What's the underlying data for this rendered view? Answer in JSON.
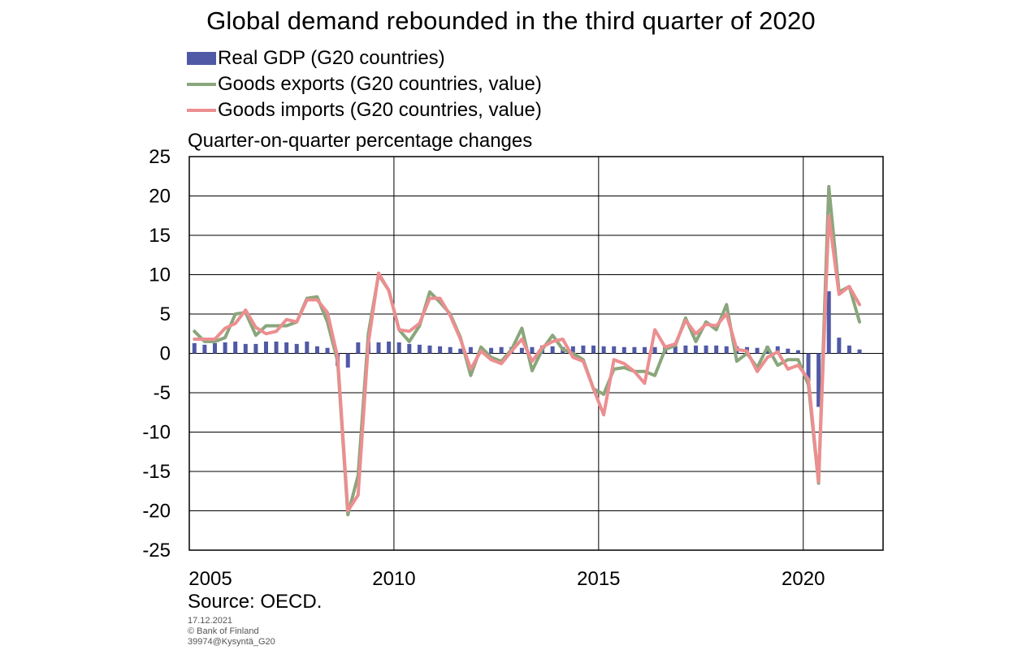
{
  "title": "Global demand rebounded in the third quarter of 2020",
  "legend": [
    {
      "label": "Real GDP (G20 countries)",
      "kind": "bar",
      "color": "#5059a6"
    },
    {
      "label": "Goods exports (G20 countries, value)",
      "kind": "line",
      "color": "#8aa67c"
    },
    {
      "label": "Goods imports (G20 countries, value)",
      "kind": "line",
      "color": "#ec8e90"
    }
  ],
  "y_axis_label": "Quarter-on-quarter percentage changes",
  "source": "Source: OECD.",
  "footer": {
    "date": "17.12.2021",
    "copyright": "© Bank of Finland",
    "code": "39974@Kysyntä_G20"
  },
  "chart_data": {
    "type": "bar+line",
    "title": "Global demand rebounded in the third quarter of 2020",
    "ylabel": "Quarter-on-quarter percentage changes",
    "ylim": [
      -25,
      25
    ],
    "yticks": [
      25,
      20,
      15,
      10,
      5,
      0,
      -5,
      -10,
      -15,
      -20,
      -25
    ],
    "xticks": [
      "2005",
      "2010",
      "2015",
      "2020"
    ],
    "grid": "horizontal lines at every 5, vertical lines at year ticks",
    "x_start": "2005 Q1",
    "x_end": "2021 Q2",
    "periods": [
      "2005 Q1",
      "2005 Q2",
      "2005 Q3",
      "2005 Q4",
      "2006 Q1",
      "2006 Q2",
      "2006 Q3",
      "2006 Q4",
      "2007 Q1",
      "2007 Q2",
      "2007 Q3",
      "2007 Q4",
      "2008 Q1",
      "2008 Q2",
      "2008 Q3",
      "2008 Q4",
      "2009 Q1",
      "2009 Q2",
      "2009 Q3",
      "2009 Q4",
      "2010 Q1",
      "2010 Q2",
      "2010 Q3",
      "2010 Q4",
      "2011 Q1",
      "2011 Q2",
      "2011 Q3",
      "2011 Q4",
      "2012 Q1",
      "2012 Q2",
      "2012 Q3",
      "2012 Q4",
      "2013 Q1",
      "2013 Q2",
      "2013 Q3",
      "2013 Q4",
      "2014 Q1",
      "2014 Q2",
      "2014 Q3",
      "2014 Q4",
      "2015 Q1",
      "2015 Q2",
      "2015 Q3",
      "2015 Q4",
      "2016 Q1",
      "2016 Q2",
      "2016 Q3",
      "2016 Q4",
      "2017 Q1",
      "2017 Q2",
      "2017 Q3",
      "2017 Q4",
      "2018 Q1",
      "2018 Q2",
      "2018 Q3",
      "2018 Q4",
      "2019 Q1",
      "2019 Q2",
      "2019 Q3",
      "2019 Q4",
      "2020 Q1",
      "2020 Q2",
      "2020 Q3",
      "2020 Q4",
      "2021 Q1",
      "2021 Q2"
    ],
    "series": [
      {
        "name": "Real GDP (G20 countries)",
        "type": "bar",
        "color": "#5059a6",
        "values": [
          1.3,
          1.1,
          1.3,
          1.4,
          1.5,
          1.2,
          1.2,
          1.5,
          1.5,
          1.4,
          1.2,
          1.5,
          0.9,
          0.7,
          -1.6,
          -1.8,
          1.4,
          1.5,
          1.4,
          1.5,
          1.4,
          1.2,
          1.1,
          1.0,
          0.9,
          0.8,
          0.6,
          0.8,
          0.6,
          0.7,
          0.8,
          0.8,
          0.7,
          0.8,
          1.0,
          0.9,
          0.8,
          0.9,
          1.0,
          1.0,
          0.9,
          0.9,
          0.8,
          0.8,
          0.8,
          0.8,
          0.9,
          0.9,
          1.0,
          1.0,
          1.0,
          1.0,
          0.9,
          0.9,
          0.8,
          0.7,
          0.9,
          0.9,
          0.6,
          0.4,
          -3.5,
          -6.8,
          7.9,
          2.0,
          1.0,
          0.5
        ]
      },
      {
        "name": "Goods exports (G20 countries, value)",
        "type": "line",
        "color": "#8aa67c",
        "values": [
          2.8,
          1.5,
          1.5,
          2.0,
          5.0,
          5.2,
          2.3,
          3.5,
          3.5,
          3.5,
          4.0,
          7.0,
          7.2,
          4.0,
          -1.0,
          -20.5,
          -15.5,
          2.5,
          10.0,
          8.0,
          3.0,
          1.5,
          3.5,
          7.8,
          6.5,
          5.0,
          2.0,
          -2.8,
          0.8,
          -0.5,
          -1.0,
          0.5,
          3.2,
          -2.2,
          0.5,
          2.3,
          0.5,
          0.0,
          -0.8,
          -4.5,
          -5.2,
          -2.0,
          -1.8,
          -2.3,
          -2.3,
          -2.8,
          0.5,
          1.0,
          4.5,
          1.5,
          4.0,
          3.0,
          6.2,
          -1.0,
          0.0,
          -1.8,
          0.8,
          -1.5,
          -0.8,
          -0.8,
          -4.0,
          -16.5,
          21.2,
          7.8,
          8.5,
          4.0
        ]
      },
      {
        "name": "Goods imports (G20 countries, value)",
        "type": "line",
        "color": "#ec8e90",
        "values": [
          1.8,
          1.8,
          1.8,
          3.2,
          3.8,
          5.5,
          3.3,
          2.5,
          2.8,
          4.3,
          4.0,
          6.8,
          6.8,
          5.2,
          -0.5,
          -20.0,
          -18.0,
          1.3,
          10.2,
          8.0,
          3.0,
          2.8,
          3.8,
          7.0,
          7.0,
          4.8,
          1.8,
          -2.0,
          0.3,
          -0.8,
          -1.3,
          0.3,
          1.8,
          -1.0,
          0.8,
          1.5,
          1.8,
          -0.5,
          -1.0,
          -4.5,
          -7.8,
          -0.8,
          -1.3,
          -2.3,
          -3.8,
          3.0,
          0.8,
          1.2,
          4.2,
          2.5,
          3.7,
          3.5,
          5.0,
          0.5,
          0.3,
          -2.3,
          -0.5,
          0.2,
          -2.0,
          -1.5,
          -3.3,
          -16.3,
          17.5,
          7.5,
          8.5,
          6.2
        ]
      }
    ]
  }
}
